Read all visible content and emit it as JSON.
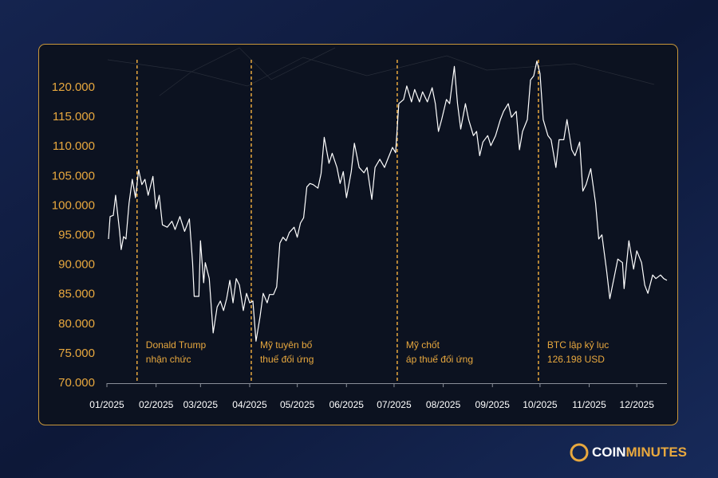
{
  "chart_data": {
    "type": "line",
    "xlim": [
      0,
      353
    ],
    "ylim": [
      70000,
      125000
    ],
    "xticks": [
      {
        "value": 0,
        "label": "01/2025"
      },
      {
        "value": 31,
        "label": "02/2025"
      },
      {
        "value": 59,
        "label": "03/2025"
      },
      {
        "value": 90,
        "label": "04/2025"
      },
      {
        "value": 120,
        "label": "05/2025"
      },
      {
        "value": 151,
        "label": "06/2025"
      },
      {
        "value": 181,
        "label": "07/2025"
      },
      {
        "value": 212,
        "label": "08/2025"
      },
      {
        "value": 243,
        "label": "09/2025"
      },
      {
        "value": 273,
        "label": "10/2025"
      },
      {
        "value": 304,
        "label": "11/2025"
      },
      {
        "value": 334,
        "label": "12/2025"
      }
    ],
    "yticks": [
      {
        "value": 70000,
        "label": "70.000"
      },
      {
        "value": 75000,
        "label": "75.000"
      },
      {
        "value": 80000,
        "label": "80.000"
      },
      {
        "value": 85000,
        "label": "85.000"
      },
      {
        "value": 90000,
        "label": "90.000"
      },
      {
        "value": 95000,
        "label": "95.000"
      },
      {
        "value": 100000,
        "label": "100.000"
      },
      {
        "value": 105000,
        "label": "105.000"
      },
      {
        "value": 110000,
        "label": "110.000"
      },
      {
        "value": 115000,
        "label": "115.000"
      },
      {
        "value": 120000,
        "label": "120.000"
      }
    ],
    "x": [
      1,
      2,
      4,
      5.5,
      8,
      9,
      10.5,
      12,
      14,
      16,
      18,
      20,
      22,
      24,
      26,
      29,
      31,
      33,
      35,
      38,
      41,
      43,
      46,
      49,
      52,
      54,
      55,
      58,
      59,
      61,
      62,
      64.5,
      67,
      69.5,
      71.5,
      73.5,
      75.5,
      77.5,
      79.5,
      81.5,
      83.5,
      86,
      88,
      90,
      92,
      94,
      96.5,
      98.5,
      101,
      102.5,
      105,
      107,
      109,
      111,
      113,
      115,
      118,
      120,
      122,
      124,
      126,
      128,
      130,
      133,
      135,
      137,
      140,
      142,
      145,
      147,
      149,
      151,
      154,
      156,
      159,
      162,
      164,
      167,
      169,
      172,
      175,
      177,
      180,
      182,
      184,
      187,
      189,
      192,
      194,
      197,
      199,
      202,
      205,
      207,
      209,
      211,
      214,
      216,
      219,
      221,
      223,
      226,
      228,
      231,
      233,
      235,
      237,
      240,
      242,
      245,
      248,
      250,
      253,
      255,
      258,
      260,
      262,
      265,
      267,
      269,
      271,
      273,
      275,
      278,
      280,
      283,
      285,
      288,
      290,
      293,
      295,
      298,
      300,
      302,
      305,
      308,
      310,
      312,
      315,
      317,
      320,
      322,
      325,
      326,
      329,
      332,
      334,
      337,
      339,
      341,
      344,
      346,
      349,
      351,
      353
    ],
    "series": [
      {
        "name": "BTC",
        "color": "#ffffff",
        "values": [
          94400,
          98200,
          98400,
          101800,
          95700,
          92600,
          94800,
          94400,
          100500,
          104500,
          101400,
          106100,
          103600,
          104500,
          101800,
          105000,
          99500,
          101800,
          96800,
          96400,
          97400,
          96000,
          98200,
          95700,
          97800,
          90400,
          84700,
          84700,
          94100,
          87000,
          90400,
          87700,
          78500,
          82900,
          83900,
          82300,
          84300,
          87400,
          83600,
          87700,
          86600,
          82300,
          85200,
          83600,
          83900,
          77100,
          81200,
          85200,
          83600,
          85000,
          85000,
          86300,
          93700,
          94700,
          94100,
          95500,
          96400,
          94700,
          97100,
          98000,
          103200,
          103800,
          103600,
          103000,
          105500,
          111600,
          107200,
          108900,
          106500,
          103800,
          105800,
          101400,
          105800,
          110600,
          106500,
          105600,
          106500,
          101100,
          106500,
          107900,
          106500,
          107900,
          109900,
          109000,
          117300,
          118000,
          120300,
          117600,
          119700,
          117600,
          119300,
          117600,
          120000,
          117300,
          112600,
          114600,
          118000,
          117300,
          123600,
          117300,
          113000,
          117300,
          114600,
          111900,
          112600,
          108500,
          110800,
          111900,
          110200,
          111900,
          114600,
          116000,
          117300,
          115000,
          116000,
          109500,
          112600,
          114600,
          121300,
          122000,
          124500,
          122400,
          114600,
          111900,
          111200,
          106500,
          111200,
          111200,
          114600,
          109500,
          108500,
          110800,
          102500,
          103600,
          106300,
          100500,
          94400,
          95100,
          89000,
          84300,
          88300,
          91000,
          90400,
          86000,
          94100,
          89300,
          92400,
          90400,
          86600,
          85200,
          88300,
          87700,
          88300,
          87700,
          87400
        ]
      }
    ],
    "annotations": [
      {
        "x": 19,
        "text": [
          "Donald Trump",
          "nhận chức"
        ]
      },
      {
        "x": 91,
        "text": [
          "Mỹ tuyên bố",
          "thuế đối ứng"
        ]
      },
      {
        "x": 183,
        "text": [
          "Mỹ chốt",
          "áp thuế đối ứng"
        ]
      },
      {
        "x": 272,
        "text": [
          "BTC lập kỷ lục",
          "126.198 USD"
        ]
      }
    ],
    "annotation_color": "#e8a83e",
    "ytick_color": "#e8a83e"
  },
  "logo": {
    "part1": "COIN",
    "part2": "MINUTES"
  }
}
